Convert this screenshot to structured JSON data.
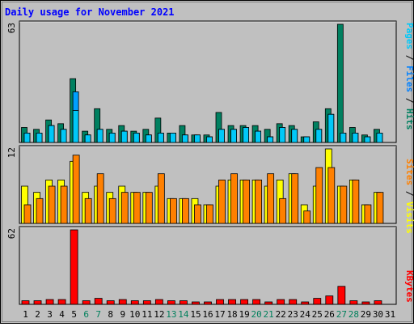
{
  "title": "Daily usage for November 2021",
  "colors": {
    "background": "#c0c0c0",
    "plot_bg": "#c0c0c0",
    "title": "#0000ff",
    "hits": "#008060",
    "files": "#00c8f8",
    "pages": "#00a0ff",
    "visits": "#ffff00",
    "sites": "#ff8000",
    "kbytes": "#ff0000",
    "weekend_day": "#00805c",
    "weekday": "#000000"
  },
  "legend": {
    "pages": "Pages",
    "files": "Files",
    "hits": "Hits",
    "sep1": " / ",
    "sep2": " / ",
    "visits": "Visits",
    "sites": "Sites",
    "kbytes": "KBytes"
  },
  "chart_data": [
    {
      "type": "bar",
      "name": "hits-files-pages",
      "ymax_label": "63",
      "ylim": [
        0,
        63
      ],
      "categories": [
        "1",
        "2",
        "3",
        "4",
        "5",
        "6",
        "7",
        "8",
        "9",
        "10",
        "11",
        "12",
        "13",
        "14",
        "15",
        "16",
        "17",
        "18",
        "19",
        "20",
        "21",
        "22",
        "23",
        "24",
        "25",
        "26",
        "27",
        "28",
        "29",
        "30",
        "31"
      ],
      "weekend": [
        "6",
        "7",
        "13",
        "14",
        "20",
        "21",
        "27",
        "28"
      ],
      "series": [
        {
          "name": "Hits",
          "values": [
            8,
            7,
            12,
            10,
            34,
            6,
            18,
            7,
            9,
            6,
            7,
            13,
            5,
            9,
            4,
            4,
            16,
            9,
            9,
            9,
            7,
            10,
            9,
            3,
            11,
            18,
            63,
            8,
            4,
            7,
            0
          ]
        },
        {
          "name": "Files",
          "values": [
            5,
            5,
            9,
            7,
            27,
            4,
            7,
            5,
            6,
            5,
            4,
            5,
            5,
            4,
            4,
            3,
            7,
            7,
            8,
            6,
            3,
            8,
            7,
            3,
            7,
            15,
            5,
            5,
            3,
            5,
            0
          ]
        },
        {
          "name": "Pages",
          "values": [
            5,
            5,
            9,
            7,
            17,
            4,
            7,
            5,
            6,
            5,
            4,
            5,
            5,
            4,
            4,
            3,
            7,
            7,
            8,
            6,
            3,
            8,
            7,
            3,
            7,
            15,
            5,
            5,
            3,
            5,
            0
          ]
        }
      ]
    },
    {
      "type": "bar",
      "name": "visits-sites",
      "ymax_label": "12",
      "ylim": [
        0,
        12
      ],
      "series": [
        {
          "name": "Visits",
          "values": [
            6,
            5,
            7,
            7,
            10,
            5,
            6,
            5,
            6,
            5,
            5,
            6,
            4,
            4,
            4,
            3,
            6,
            7,
            7,
            7,
            6,
            7,
            8,
            3,
            6,
            12,
            6,
            7,
            3,
            5,
            0
          ]
        },
        {
          "name": "Sites",
          "values": [
            3,
            4,
            6,
            6,
            11,
            4,
            8,
            4,
            5,
            5,
            5,
            8,
            4,
            4,
            3,
            3,
            7,
            8,
            7,
            7,
            8,
            4,
            8,
            2,
            9,
            9,
            6,
            7,
            3,
            5,
            0
          ]
        }
      ]
    },
    {
      "type": "bar",
      "name": "kbytes",
      "ymax_label": "62",
      "ylim": [
        0,
        62
      ],
      "series": [
        {
          "name": "KBytes",
          "values": [
            3,
            3,
            4,
            4,
            62,
            3,
            5,
            3,
            4,
            3,
            3,
            4,
            3,
            3,
            2,
            2,
            4,
            4,
            4,
            4,
            2,
            4,
            4,
            2,
            5,
            7,
            15,
            3,
            2,
            3,
            0
          ]
        }
      ]
    }
  ]
}
